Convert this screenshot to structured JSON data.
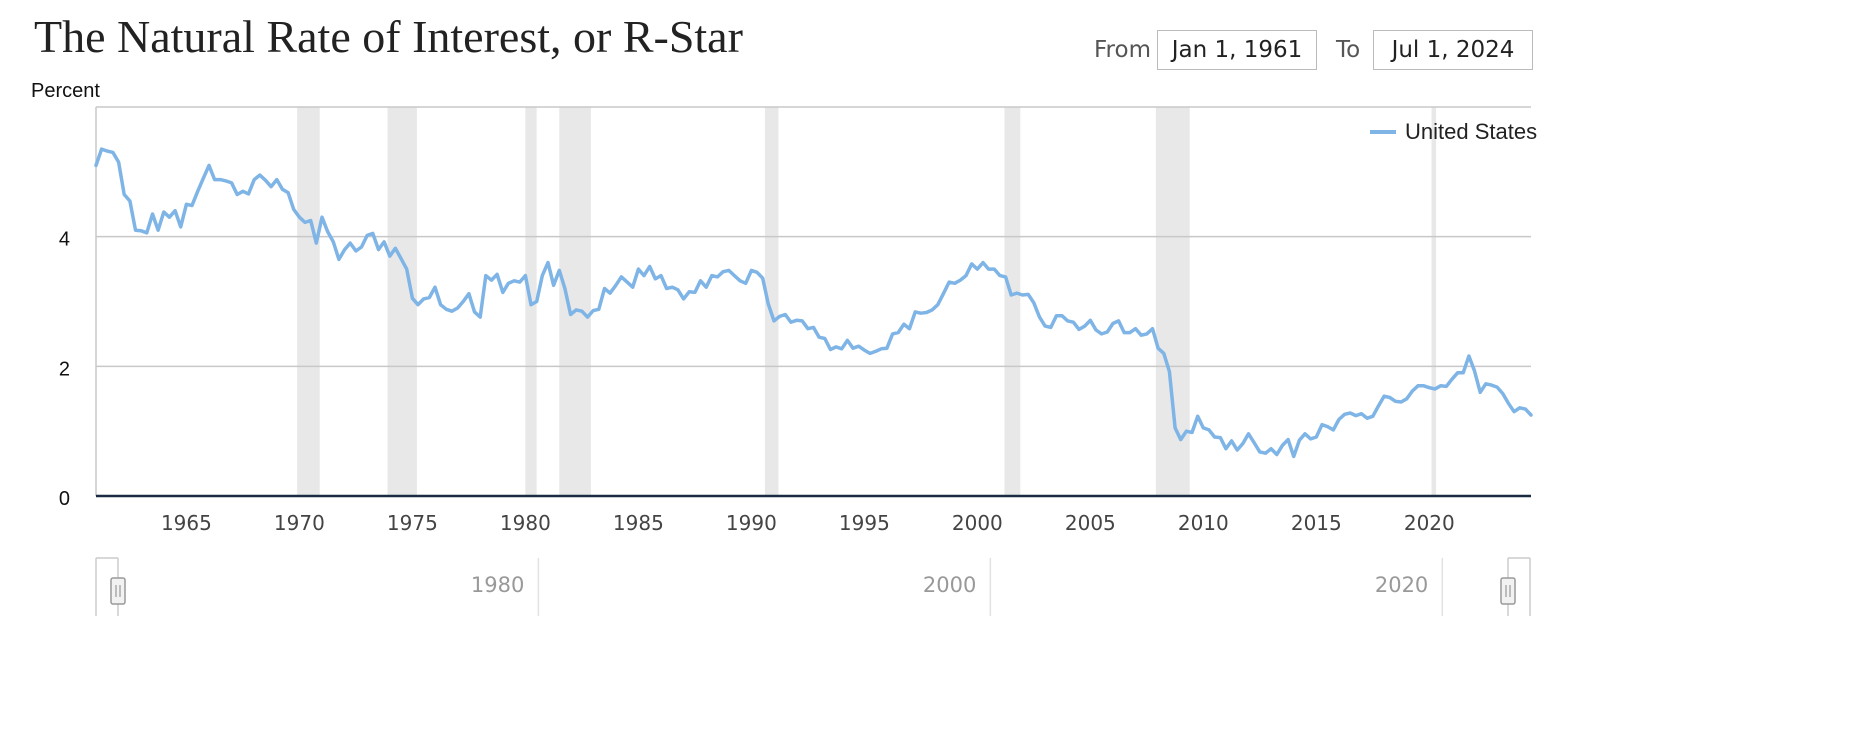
{
  "header": {
    "title": "The Natural Rate of Interest, or R-Star",
    "from_label": "From",
    "from_value": "Jan 1, 1961",
    "to_label": "To",
    "to_value": "Jul 1, 2024"
  },
  "colors": {
    "series": "#7eb4e6",
    "recession": "#e8e8e8",
    "grid": "#c8c8c8",
    "axis": "#1a2b44"
  },
  "chart_data": {
    "type": "line",
    "title": "The Natural Rate of Interest, or R-Star",
    "ylabel": "Percent",
    "xlabel": "",
    "xlim": [
      1961.0,
      2024.5
    ],
    "ylim": [
      0,
      6
    ],
    "yticks": [
      0,
      2,
      4
    ],
    "xticks": [
      1965,
      1970,
      1975,
      1980,
      1985,
      1990,
      1995,
      2000,
      2005,
      2010,
      2015,
      2020
    ],
    "navigator_ticks": [
      1980,
      2000,
      2020
    ],
    "grid": true,
    "legend": "top-right",
    "recessions": [
      [
        1969.9,
        1970.9
      ],
      [
        1973.9,
        1975.2
      ],
      [
        1980.0,
        1980.5
      ],
      [
        1981.5,
        1982.9
      ],
      [
        1990.6,
        1991.2
      ],
      [
        2001.2,
        2001.9
      ],
      [
        2007.9,
        2009.4
      ],
      [
        2020.1,
        2020.3
      ]
    ],
    "series": [
      {
        "name": "United States",
        "x": [
          1961.0,
          1961.25,
          1961.5,
          1961.75,
          1962.0,
          1962.25,
          1962.5,
          1962.75,
          1963.0,
          1963.25,
          1963.5,
          1963.75,
          1964.0,
          1964.25,
          1964.5,
          1964.75,
          1965.0,
          1965.25,
          1965.5,
          1965.75,
          1966.0,
          1966.25,
          1966.5,
          1966.75,
          1967.0,
          1967.25,
          1967.5,
          1967.75,
          1968.0,
          1968.25,
          1968.5,
          1968.75,
          1969.0,
          1969.25,
          1969.5,
          1969.75,
          1970.0,
          1970.25,
          1970.5,
          1970.75,
          1971.0,
          1971.25,
          1971.5,
          1971.75,
          1972.0,
          1972.25,
          1972.5,
          1972.75,
          1973.0,
          1973.25,
          1973.5,
          1973.75,
          1974.0,
          1974.25,
          1974.5,
          1974.75,
          1975.0,
          1975.25,
          1975.5,
          1975.75,
          1976.0,
          1976.25,
          1976.5,
          1976.75,
          1977.0,
          1977.25,
          1977.5,
          1977.75,
          1978.0,
          1978.25,
          1978.5,
          1978.75,
          1979.0,
          1979.25,
          1979.5,
          1979.75,
          1980.0,
          1980.25,
          1980.5,
          1980.75,
          1981.0,
          1981.25,
          1981.5,
          1981.75,
          1982.0,
          1982.25,
          1982.5,
          1982.75,
          1983.0,
          1983.25,
          1983.5,
          1983.75,
          1984.0,
          1984.25,
          1984.5,
          1984.75,
          1985.0,
          1985.25,
          1985.5,
          1985.75,
          1986.0,
          1986.25,
          1986.5,
          1986.75,
          1987.0,
          1987.25,
          1987.5,
          1987.75,
          1988.0,
          1988.25,
          1988.5,
          1988.75,
          1989.0,
          1989.25,
          1989.5,
          1989.75,
          1990.0,
          1990.25,
          1990.5,
          1990.75,
          1991.0,
          1991.25,
          1991.5,
          1991.75,
          1992.0,
          1992.25,
          1992.5,
          1992.75,
          1993.0,
          1993.25,
          1993.5,
          1993.75,
          1994.0,
          1994.25,
          1994.5,
          1994.75,
          1995.0,
          1995.25,
          1995.5,
          1995.75,
          1996.0,
          1996.25,
          1996.5,
          1996.75,
          1997.0,
          1997.25,
          1997.5,
          1997.75,
          1998.0,
          1998.25,
          1998.5,
          1998.75,
          1999.0,
          1999.25,
          1999.5,
          1999.75,
          2000.0,
          2000.25,
          2000.5,
          2000.75,
          2001.0,
          2001.25,
          2001.5,
          2001.75,
          2002.0,
          2002.25,
          2002.5,
          2002.75,
          2003.0,
          2003.25,
          2003.5,
          2003.75,
          2004.0,
          2004.25,
          2004.5,
          2004.75,
          2005.0,
          2005.25,
          2005.5,
          2005.75,
          2006.0,
          2006.25,
          2006.5,
          2006.75,
          2007.0,
          2007.25,
          2007.5,
          2007.75,
          2008.0,
          2008.25,
          2008.5,
          2008.75,
          2009.0,
          2009.25,
          2009.5,
          2009.75,
          2010.0,
          2010.25,
          2010.5,
          2010.75,
          2011.0,
          2011.25,
          2011.5,
          2011.75,
          2012.0,
          2012.25,
          2012.5,
          2012.75,
          2013.0,
          2013.25,
          2013.5,
          2013.75,
          2014.0,
          2014.25,
          2014.5,
          2014.75,
          2015.0,
          2015.25,
          2015.5,
          2015.75,
          2016.0,
          2016.25,
          2016.5,
          2016.75,
          2017.0,
          2017.25,
          2017.5,
          2017.75,
          2018.0,
          2018.25,
          2018.5,
          2018.75,
          2019.0,
          2019.25,
          2019.5,
          2019.75,
          2020.0,
          2020.25,
          2020.5,
          2020.75,
          2021.0,
          2021.25,
          2021.5,
          2021.75,
          2022.0,
          2022.25,
          2022.5,
          2022.75,
          2023.0,
          2023.25,
          2023.5,
          2023.75,
          2024.0,
          2024.25,
          2024.5
        ],
        "values": [
          5.1,
          5.35,
          5.32,
          5.3,
          5.15,
          4.65,
          4.55,
          4.1,
          4.09,
          4.06,
          4.35,
          4.1,
          4.38,
          4.3,
          4.4,
          4.15,
          4.5,
          4.48,
          4.7,
          4.9,
          5.1,
          4.88,
          4.88,
          4.86,
          4.83,
          4.65,
          4.7,
          4.66,
          4.88,
          4.95,
          4.87,
          4.77,
          4.88,
          4.73,
          4.68,
          4.42,
          4.3,
          4.22,
          4.25,
          3.9,
          4.3,
          4.08,
          3.92,
          3.65,
          3.8,
          3.9,
          3.78,
          3.84,
          4.02,
          4.05,
          3.8,
          3.92,
          3.7,
          3.82,
          3.66,
          3.5,
          3.05,
          2.95,
          3.04,
          3.06,
          3.22,
          2.95,
          2.88,
          2.85,
          2.9,
          3.0,
          3.12,
          2.84,
          2.76,
          3.4,
          3.33,
          3.42,
          3.14,
          3.28,
          3.32,
          3.3,
          3.4,
          2.95,
          3.0,
          3.4,
          3.6,
          3.25,
          3.48,
          3.2,
          2.8,
          2.87,
          2.85,
          2.76,
          2.86,
          2.88,
          3.2,
          3.13,
          3.25,
          3.38,
          3.3,
          3.22,
          3.5,
          3.4,
          3.54,
          3.35,
          3.4,
          3.2,
          3.22,
          3.18,
          3.04,
          3.15,
          3.14,
          3.32,
          3.22,
          3.4,
          3.38,
          3.46,
          3.48,
          3.4,
          3.32,
          3.28,
          3.48,
          3.45,
          3.36,
          2.96,
          2.7,
          2.77,
          2.8,
          2.68,
          2.71,
          2.7,
          2.58,
          2.6,
          2.45,
          2.43,
          2.26,
          2.3,
          2.27,
          2.4,
          2.28,
          2.31,
          2.25,
          2.2,
          2.23,
          2.27,
          2.28,
          2.5,
          2.52,
          2.65,
          2.58,
          2.84,
          2.82,
          2.83,
          2.87,
          2.95,
          3.12,
          3.3,
          3.28,
          3.33,
          3.4,
          3.58,
          3.5,
          3.6,
          3.5,
          3.5,
          3.4,
          3.38,
          3.1,
          3.13,
          3.1,
          3.11,
          2.98,
          2.76,
          2.62,
          2.6,
          2.78,
          2.78,
          2.7,
          2.68,
          2.57,
          2.62,
          2.71,
          2.56,
          2.5,
          2.53,
          2.66,
          2.7,
          2.52,
          2.52,
          2.58,
          2.48,
          2.5,
          2.58,
          2.28,
          2.2,
          1.92,
          1.05,
          0.87,
          1.0,
          0.98,
          1.23,
          1.05,
          1.02,
          0.91,
          0.9,
          0.73,
          0.85,
          0.71,
          0.81,
          0.96,
          0.82,
          0.68,
          0.66,
          0.73,
          0.64,
          0.78,
          0.87,
          0.61,
          0.86,
          0.96,
          0.88,
          0.91,
          1.1,
          1.07,
          1.02,
          1.18,
          1.26,
          1.28,
          1.24,
          1.27,
          1.2,
          1.23,
          1.39,
          1.54,
          1.52,
          1.46,
          1.45,
          1.5,
          1.62,
          1.7,
          1.7,
          1.67,
          1.65,
          1.7,
          1.69,
          1.8,
          1.9,
          1.9,
          2.16,
          1.93,
          1.6,
          1.73,
          1.71,
          1.68,
          1.58,
          1.43,
          1.3,
          1.36,
          1.34,
          1.25
        ]
      }
    ]
  }
}
